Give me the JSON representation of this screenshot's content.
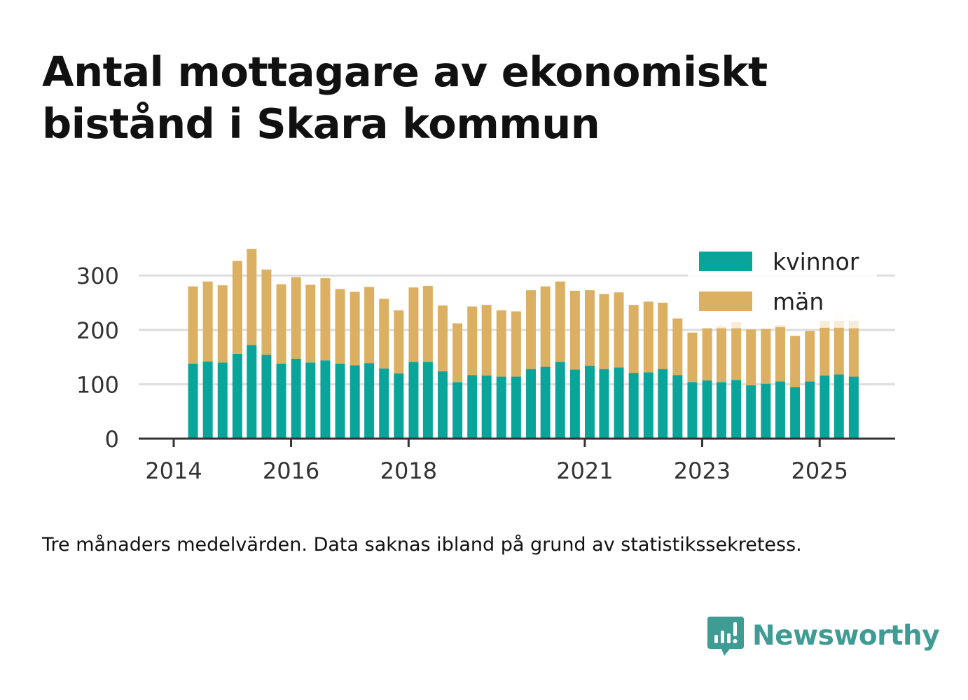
{
  "title": "Antal mottagare av ekonomiskt bistånd i Skara kommun",
  "note": "Tre månaders medelvärden. Data saknas ibland på grund av statistikssekretess.",
  "brand": {
    "name": "Newsworthy",
    "color": "#3f9c95",
    "icon": "bar-chart-speech-bubble-icon"
  },
  "colors": {
    "kvinnor": "#0aa59a",
    "man": "#dbb062",
    "estimate": "#f7ecd8",
    "grid": "#dddddd",
    "axis": "#333333"
  },
  "chart_data": {
    "type": "bar",
    "stacked": true,
    "title": "Antal mottagare av ekonomiskt bistånd i Skara kommun",
    "ylim": [
      0,
      350
    ],
    "yticks": [
      0,
      100,
      200,
      300
    ],
    "xticks": [
      "2014",
      "2016",
      "2018",
      "2021",
      "2023",
      "2025"
    ],
    "xtick_dates": [
      "2014-01",
      "2016-01",
      "2018-01",
      "2021-01",
      "2023-01",
      "2025-01"
    ],
    "grid": true,
    "legend": "top-right",
    "x": [
      "2014-05",
      "2014-08",
      "2014-11",
      "2015-02",
      "2015-05",
      "2015-08",
      "2015-11",
      "2016-02",
      "2016-05",
      "2016-08",
      "2016-11",
      "2017-02",
      "2017-05",
      "2017-08",
      "2017-11",
      "2018-02",
      "2018-05",
      "2018-08",
      "2018-11",
      "2019-02",
      "2019-05",
      "2019-08",
      "2019-11",
      "2020-02",
      "2020-05",
      "2020-08",
      "2020-11",
      "2021-02",
      "2021-05",
      "2021-08",
      "2021-11",
      "2022-02",
      "2022-05",
      "2022-08",
      "2022-11",
      "2023-02",
      "2023-05",
      "2023-08",
      "2023-11",
      "2024-02",
      "2024-05",
      "2024-08",
      "2024-11",
      "2025-02",
      "2025-05",
      "2025-08"
    ],
    "series": [
      {
        "name": "kvinnor",
        "values": [
          138,
          142,
          140,
          156,
          172,
          154,
          138,
          147,
          140,
          144,
          138,
          135,
          139,
          129,
          120,
          141,
          141,
          124,
          104,
          117,
          116,
          114,
          114,
          128,
          132,
          141,
          127,
          134,
          128,
          131,
          121,
          122,
          128,
          117,
          104,
          107,
          104,
          108,
          98,
          101,
          105,
          95,
          105,
          116,
          118,
          114
        ]
      },
      {
        "name": "män",
        "values": [
          142,
          147,
          142,
          171,
          177,
          157,
          146,
          150,
          143,
          151,
          137,
          135,
          140,
          128,
          116,
          137,
          140,
          121,
          108,
          126,
          130,
          122,
          120,
          145,
          148,
          148,
          145,
          139,
          138,
          138,
          125,
          130,
          122,
          104,
          91,
          96,
          99,
          95,
          103,
          101,
          100,
          94,
          93,
          88,
          86,
          89
        ]
      },
      {
        "name": "",
        "values": [
          0,
          0,
          0,
          0,
          0,
          0,
          0,
          0,
          0,
          0,
          0,
          0,
          0,
          0,
          0,
          0,
          0,
          0,
          0,
          0,
          0,
          0,
          0,
          0,
          0,
          0,
          0,
          0,
          0,
          0,
          0,
          0,
          0,
          0,
          0,
          0,
          4,
          11,
          0,
          0,
          4,
          0,
          0,
          16,
          32,
          25
        ]
      }
    ]
  }
}
